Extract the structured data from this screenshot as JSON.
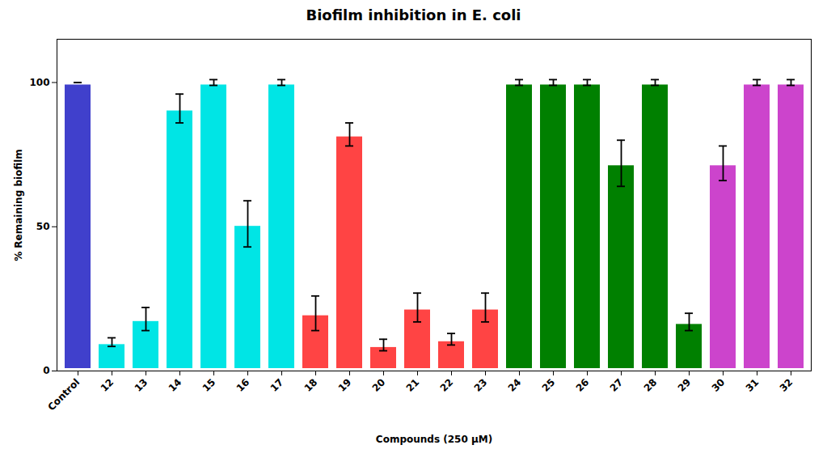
{
  "chart_data": {
    "type": "bar",
    "title": "Biofilm inhibition in E. coli",
    "xlabel": "Compounds (250 μM)",
    "ylabel": "% Remaining biofilm",
    "categories": [
      "Control",
      "12",
      "13",
      "14",
      "15",
      "16",
      "17",
      "18",
      "19",
      "20",
      "21",
      "22",
      "23",
      "24",
      "25",
      "26",
      "27",
      "28",
      "29",
      "30",
      "31",
      "32"
    ],
    "values": [
      100,
      10,
      18,
      91,
      100,
      51,
      100,
      20,
      82,
      9,
      22,
      11,
      22,
      100,
      100,
      100,
      72,
      100,
      17,
      72,
      100,
      100
    ],
    "errors": [
      0,
      1.5,
      4,
      5,
      1,
      8,
      1,
      6,
      4,
      2,
      5,
      2,
      5,
      1,
      1,
      1,
      8,
      1,
      3,
      6,
      1,
      1
    ],
    "colors": [
      "#4040cc",
      "#00e5e5",
      "#00e5e5",
      "#00e5e5",
      "#00e5e5",
      "#00e5e5",
      "#00e5e5",
      "#ff4444",
      "#ff4444",
      "#ff4444",
      "#ff4444",
      "#ff4444",
      "#ff4444",
      "#008000",
      "#008000",
      "#008000",
      "#008000",
      "#008000",
      "#008000",
      "#cc44cc",
      "#cc44cc",
      "#cc44cc"
    ],
    "ylim": [
      0,
      115
    ],
    "yticks": [
      0,
      50,
      100
    ],
    "grid": false
  }
}
